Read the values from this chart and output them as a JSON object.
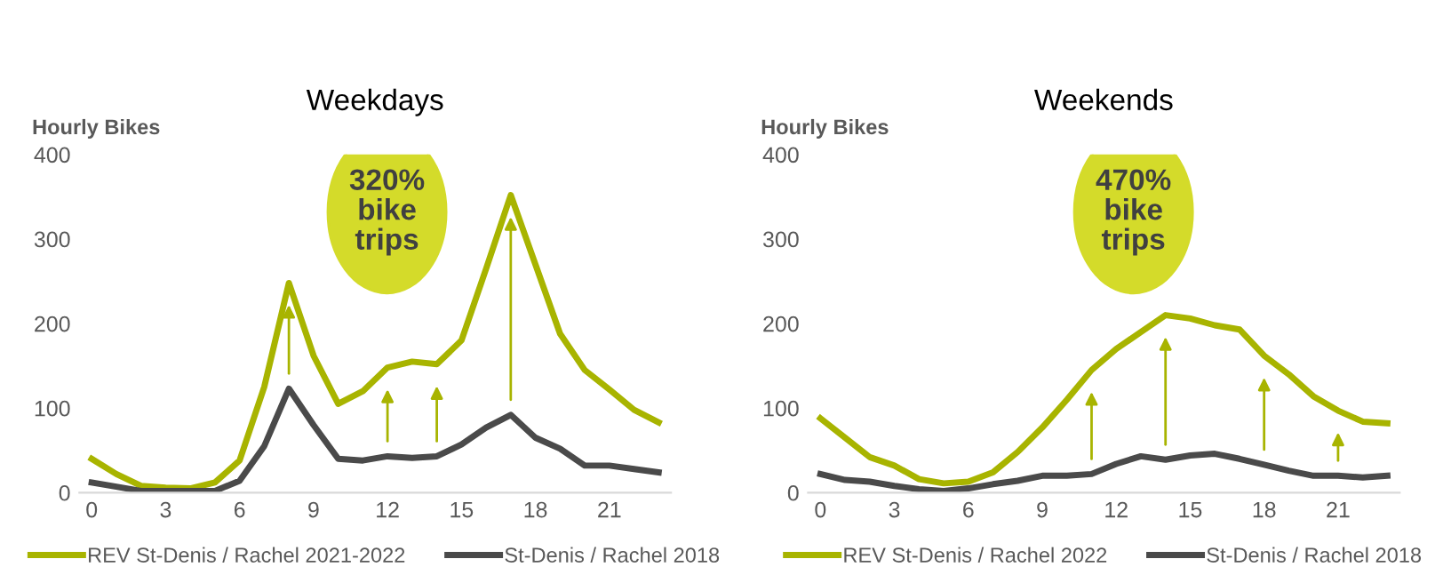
{
  "chart_data": [
    {
      "type": "line",
      "title": "Weekdays",
      "ylabel": "Hourly Bikes",
      "x": [
        0,
        1,
        2,
        3,
        4,
        5,
        6,
        7,
        8,
        9,
        10,
        11,
        12,
        13,
        14,
        15,
        16,
        17,
        18,
        19,
        20,
        21,
        22,
        23
      ],
      "series": [
        {
          "name": "REV St-Denis / Rachel 2021-2022",
          "color": "#a8b400",
          "values": [
            40,
            22,
            8,
            6,
            5,
            12,
            38,
            125,
            248,
            162,
            105,
            120,
            148,
            155,
            152,
            180,
            265,
            352,
            270,
            188,
            145,
            122,
            98,
            83
          ]
        },
        {
          "name": "St-Denis / Rachel 2018",
          "color": "#4a4a4a",
          "values": [
            12,
            7,
            2,
            2,
            2,
            2,
            14,
            55,
            123,
            80,
            40,
            38,
            43,
            41,
            43,
            57,
            77,
            92,
            65,
            52,
            32,
            32,
            28,
            24
          ]
        }
      ],
      "xlim": [
        -0.5,
        23.5
      ],
      "xticks": [
        0,
        3,
        6,
        9,
        12,
        15,
        18,
        21
      ],
      "ylim": [
        0,
        400
      ],
      "yticks": [
        0,
        100,
        200,
        300,
        400
      ],
      "annotations": [
        "320%\nbike\ntrips"
      ],
      "grid": false,
      "legend": "bottom",
      "marker": "none",
      "line_style": "solid"
    },
    {
      "type": "line",
      "title": "Weekends",
      "ylabel": "Hourly Bikes",
      "x": [
        0,
        1,
        2,
        3,
        4,
        5,
        6,
        7,
        8,
        9,
        10,
        11,
        12,
        13,
        14,
        15,
        16,
        17,
        18,
        19,
        20,
        21,
        22,
        23
      ],
      "series": [
        {
          "name": "REV St-Denis / Rachel 2022",
          "color": "#a8b400",
          "values": [
            88,
            65,
            42,
            32,
            16,
            11,
            13,
            24,
            48,
            77,
            110,
            145,
            170,
            190,
            210,
            206,
            198,
            193,
            162,
            140,
            114,
            97,
            84,
            82
          ]
        },
        {
          "name": "St-Denis / Rachel 2018",
          "color": "#4a4a4a",
          "values": [
            22,
            15,
            13,
            8,
            4,
            2,
            5,
            10,
            14,
            20,
            20,
            22,
            34,
            43,
            39,
            44,
            46,
            40,
            33,
            26,
            20,
            20,
            18,
            20
          ]
        }
      ],
      "xlim": [
        -0.5,
        23.5
      ],
      "xticks": [
        0,
        3,
        6,
        9,
        12,
        15,
        18,
        21
      ],
      "ylim": [
        0,
        400
      ],
      "yticks": [
        0,
        100,
        200,
        300,
        400
      ],
      "annotations": [
        "470%\nbike\ntrips"
      ],
      "grid": false,
      "legend": "bottom",
      "marker": "none",
      "line_style": "solid"
    }
  ]
}
